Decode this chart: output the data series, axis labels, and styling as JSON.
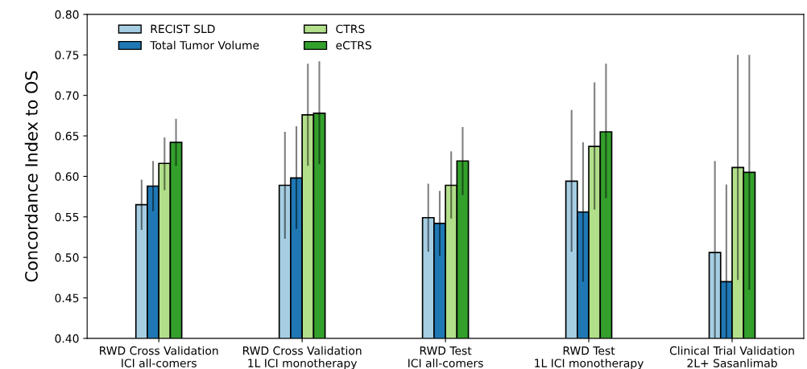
{
  "chart_data": {
    "type": "bar",
    "ylabel": "Concordance Index to OS",
    "categories": [
      "RWD Cross Validation\nICI all-comers",
      "RWD Cross Validation\n1L ICI monotherapy",
      "RWD Test\nICI all-comers",
      "RWD Test\n1L ICI monotherapy",
      "Clinical Trial Validation\n2L+ Sasanlimab"
    ],
    "series": [
      {
        "name": "RECIST SLD",
        "color": "#a6cee3",
        "values": [
          0.565,
          0.589,
          0.549,
          0.594,
          0.506
        ],
        "errors": [
          [
            0.534,
            0.596
          ],
          [
            0.523,
            0.655
          ],
          [
            0.507,
            0.591
          ],
          [
            0.507,
            0.682
          ],
          [
            0.4,
            0.619
          ]
        ]
      },
      {
        "name": "Total Tumor Volume",
        "color": "#1f78b4",
        "values": [
          0.588,
          0.598,
          0.542,
          0.556,
          0.47
        ],
        "errors": [
          [
            0.557,
            0.619
          ],
          [
            0.535,
            0.662
          ],
          [
            0.502,
            0.582
          ],
          [
            0.47,
            0.642
          ],
          [
            0.4,
            0.59
          ]
        ]
      },
      {
        "name": "CTRS",
        "color": "#b2df8a",
        "values": [
          0.616,
          0.676,
          0.589,
          0.637,
          0.611
        ],
        "errors": [
          [
            0.583,
            0.648
          ],
          [
            0.613,
            0.739
          ],
          [
            0.548,
            0.631
          ],
          [
            0.559,
            0.716
          ],
          [
            0.472,
            0.75
          ]
        ]
      },
      {
        "name": "eCTRS",
        "color": "#33a02c",
        "values": [
          0.642,
          0.678,
          0.619,
          0.655,
          0.605
        ],
        "errors": [
          [
            0.613,
            0.671
          ],
          [
            0.615,
            0.742
          ],
          [
            0.577,
            0.661
          ],
          [
            0.573,
            0.739
          ],
          [
            0.46,
            0.75
          ]
        ]
      }
    ],
    "ylim": [
      0.4,
      0.8
    ],
    "yticks": [
      {
        "value": 0.4,
        "label": "0.40"
      },
      {
        "value": 0.45,
        "label": "0.45"
      },
      {
        "value": 0.5,
        "label": "0.50"
      },
      {
        "value": 0.55,
        "label": "0.55"
      },
      {
        "value": 0.6,
        "label": "0.60"
      },
      {
        "value": 0.65,
        "label": "0.65"
      },
      {
        "value": 0.7,
        "label": "0.70"
      },
      {
        "value": 0.75,
        "label": "0.75"
      },
      {
        "value": 0.8,
        "label": "0.80"
      }
    ],
    "grid": false,
    "legend": "top left"
  }
}
